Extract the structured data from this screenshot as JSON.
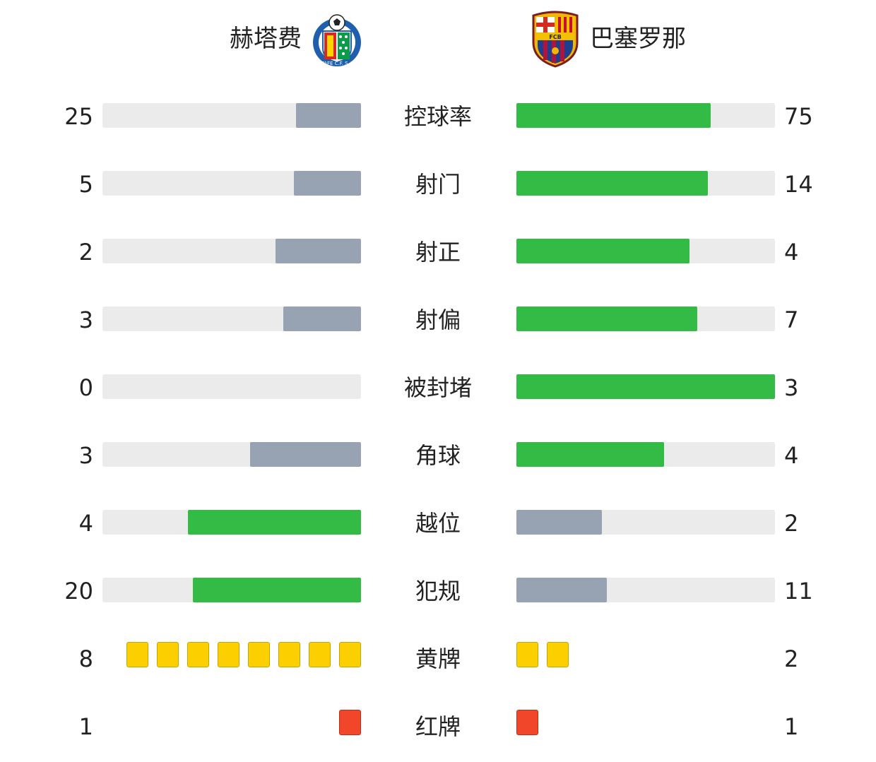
{
  "home": {
    "name": "赫塔费",
    "badge_icon": "getafe-crest-icon",
    "badge_text": "GETAFE C.F. S.A.D."
  },
  "away": {
    "name": "巴塞罗那",
    "badge_icon": "fc-barcelona-crest-icon",
    "badge_text": "FCB"
  },
  "colors": {
    "leader_bar": "#33bb46",
    "trailer_bar": "#97a2b3",
    "track": "#ebebeb",
    "yellow_card": "#fccf00",
    "red_card": "#f2462b"
  },
  "stats": [
    {
      "label": "控球率",
      "home": "25",
      "away": "75",
      "home_fill": 0.25,
      "away_fill": 0.75,
      "leader": "away"
    },
    {
      "label": "射门",
      "home": "5",
      "away": "14",
      "home_fill": 0.26,
      "away_fill": 0.74,
      "leader": "away"
    },
    {
      "label": "射正",
      "home": "2",
      "away": "4",
      "home_fill": 0.33,
      "away_fill": 0.67,
      "leader": "away"
    },
    {
      "label": "射偏",
      "home": "3",
      "away": "7",
      "home_fill": 0.3,
      "away_fill": 0.7,
      "leader": "away"
    },
    {
      "label": "被封堵",
      "home": "0",
      "away": "3",
      "home_fill": 0.0,
      "away_fill": 1.0,
      "leader": "away"
    },
    {
      "label": "角球",
      "home": "3",
      "away": "4",
      "home_fill": 0.43,
      "away_fill": 0.57,
      "leader": "away"
    },
    {
      "label": "越位",
      "home": "4",
      "away": "2",
      "home_fill": 0.67,
      "away_fill": 0.33,
      "leader": "home"
    },
    {
      "label": "犯规",
      "home": "20",
      "away": "11",
      "home_fill": 0.65,
      "away_fill": 0.35,
      "leader": "home"
    }
  ],
  "cards": [
    {
      "label": "黄牌",
      "home": "8",
      "away": "2",
      "home_count": 8,
      "away_count": 2,
      "type": "yellow"
    },
    {
      "label": "红牌",
      "home": "1",
      "away": "1",
      "home_count": 1,
      "away_count": 1,
      "type": "red"
    }
  ]
}
